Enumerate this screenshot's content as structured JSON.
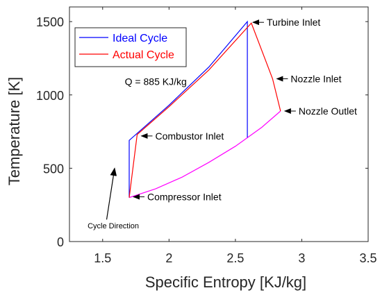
{
  "chart_data": {
    "type": "line",
    "title": "",
    "xlabel": "Specific Entropy [KJ/kg]",
    "ylabel": "Temperature [K]",
    "xlim": [
      1.25,
      3.5
    ],
    "ylim": [
      0,
      1600
    ],
    "xticks": [
      1.5,
      2,
      2.5,
      3,
      3.5
    ],
    "xtick_labels": [
      "1.5",
      "2",
      "2.5",
      "3",
      "3.5"
    ],
    "yticks": [
      0,
      500,
      1000,
      1500
    ],
    "ytick_labels": [
      "0",
      "500",
      "1000",
      "1500"
    ],
    "grid": false,
    "legend_position": "top-left",
    "colors": {
      "ideal": "#0000ff",
      "actual": "#ff0000",
      "shared_heat_rejection": "#ff00ff"
    },
    "series": [
      {
        "name": "Ideal Cycle",
        "color": "#0000ff",
        "x": [
          1.7,
          1.7,
          2.0,
          2.3,
          2.59,
          2.59
        ],
        "y": [
          300,
          690,
          930,
          1190,
          1500,
          710
        ]
      },
      {
        "name": "Actual Cycle",
        "color": "#ff0000",
        "x": [
          1.7,
          1.76,
          2.0,
          2.3,
          2.62,
          2.78,
          2.84
        ],
        "y": [
          300,
          730,
          920,
          1170,
          1490,
          1110,
          890
        ]
      }
    ],
    "heat_rejection_curve": {
      "color": "#ff00ff",
      "x": [
        1.7,
        1.9,
        2.1,
        2.3,
        2.5,
        2.7,
        2.84
      ],
      "y": [
        300,
        360,
        440,
        540,
        650,
        780,
        890
      ]
    },
    "annotations": [
      {
        "text": "Turbine Inlet",
        "x": 2.6,
        "y": 1495
      },
      {
        "text": "Nozzle Inlet",
        "x": 2.78,
        "y": 1110
      },
      {
        "text": "Nozzle Outlet",
        "x": 2.84,
        "y": 890
      },
      {
        "text": "Combustor Inlet",
        "x": 1.76,
        "y": 720
      },
      {
        "text": "Compressor Inlet",
        "x": 1.7,
        "y": 305
      }
    ],
    "heat_label": {
      "text": "Q = 885 KJ/kg",
      "x": 1.9,
      "y": 1090
    },
    "direction_label": {
      "text": "Cycle Direction",
      "x": 1.58,
      "y": 110
    },
    "direction_arrow": {
      "from": [
        1.53,
        150
      ],
      "to": [
        1.59,
        500
      ]
    }
  }
}
